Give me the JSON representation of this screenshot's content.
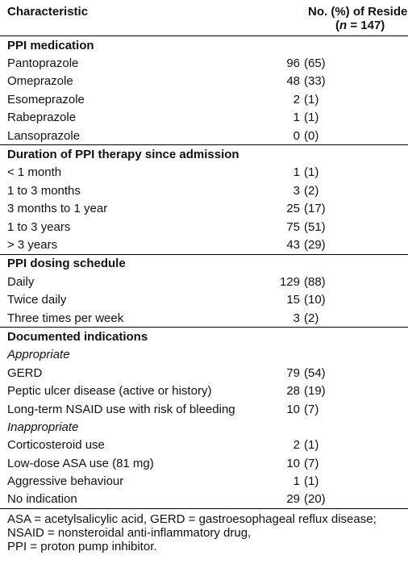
{
  "header": {
    "col1": "Characteristic",
    "col2_line1": "No. (%) of Residents",
    "col2_line2": [
      "(",
      "n",
      " = 147)"
    ]
  },
  "sections": [
    {
      "title": "PPI medication",
      "rows": [
        {
          "label": "Pantoprazole",
          "n": 96,
          "pct": "(65)"
        },
        {
          "label": "Omeprazole",
          "n": 48,
          "pct": "(33)"
        },
        {
          "label": "Esomeprazole",
          "n": 2,
          "pct": "(1)"
        },
        {
          "label": "Rabeprazole",
          "n": 1,
          "pct": "(1)"
        },
        {
          "label": "Lansoprazole",
          "n": 0,
          "pct": "(0)"
        }
      ]
    },
    {
      "title": "Duration of PPI therapy since admission",
      "rows": [
        {
          "label": "< 1 month",
          "n": 1,
          "pct": "(1)"
        },
        {
          "label": "1 to 3 months",
          "n": 3,
          "pct": "(2)"
        },
        {
          "label": "3 months to 1 year",
          "n": 25,
          "pct": "(17)"
        },
        {
          "label": "1 to 3 years",
          "n": 75,
          "pct": "(51)"
        },
        {
          "label": "> 3 years",
          "n": 43,
          "pct": "(29)"
        }
      ]
    },
    {
      "title": "PPI dosing schedule",
      "rows": [
        {
          "label": "Daily",
          "n": 129,
          "pct": "(88)"
        },
        {
          "label": "Twice daily",
          "n": 15,
          "pct": "(10)"
        },
        {
          "label": "Three times per week",
          "n": 3,
          "pct": "(2)"
        }
      ]
    },
    {
      "title": "Documented indications",
      "rows": [
        {
          "subheading": "Appropriate"
        },
        {
          "label": "GERD",
          "n": 79,
          "pct": "(54)"
        },
        {
          "label": "Peptic ulcer disease (active or history)",
          "n": 28,
          "pct": "(19)"
        },
        {
          "label": "Long-term NSAID use with risk of bleeding",
          "n": 10,
          "pct": "(7)"
        },
        {
          "subheading": "Inappropriate"
        },
        {
          "label": "Corticosteroid use",
          "n": 2,
          "pct": "(1)"
        },
        {
          "label": "Low-dose ASA use (81 mg)",
          "n": 10,
          "pct": "(7)"
        },
        {
          "label": "Aggressive behaviour",
          "n": 1,
          "pct": "(1)"
        },
        {
          "label": "No indication",
          "n": 29,
          "pct": "(20)"
        }
      ]
    }
  ],
  "footnote": [
    "ASA = acetylsalicylic acid, GERD = gastroesophageal reflux disease;",
    "NSAID = nonsteroidal anti-inflammatory drug,",
    "PPI = proton pump inhibitor."
  ]
}
